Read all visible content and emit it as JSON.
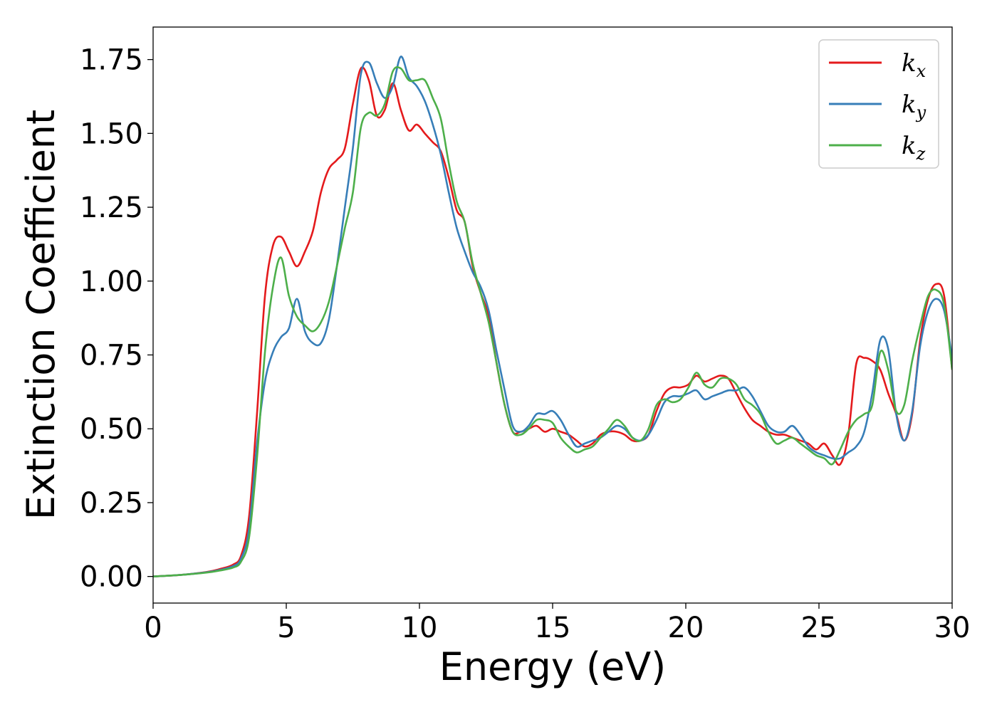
{
  "chart_data": {
    "type": "line",
    "xlabel": "Energy (eV)",
    "ylabel": "Extinction Coefficient",
    "xlim": [
      0,
      30
    ],
    "ylim": [
      -0.09,
      1.86
    ],
    "xticks": [
      "0",
      "5",
      "10",
      "15",
      "20",
      "25",
      "30"
    ],
    "yticks": [
      "0.00",
      "0.25",
      "0.50",
      "0.75",
      "1.00",
      "1.25",
      "1.50",
      "1.75"
    ],
    "grid": false,
    "legend_position": "top-right",
    "series": [
      {
        "name": "k",
        "subscript": "x",
        "color": "#e41a1c",
        "x": [
          0,
          1,
          2,
          2.5,
          3,
          3.3,
          3.6,
          3.9,
          4.2,
          4.5,
          4.8,
          5.1,
          5.4,
          5.7,
          6.0,
          6.3,
          6.6,
          6.9,
          7.2,
          7.5,
          7.8,
          8.1,
          8.4,
          8.7,
          9.0,
          9.3,
          9.6,
          9.9,
          10.2,
          10.5,
          10.8,
          11.1,
          11.4,
          11.7,
          12.0,
          12.3,
          12.6,
          12.9,
          13.2,
          13.5,
          13.8,
          14.1,
          14.4,
          14.7,
          15.0,
          15.3,
          15.6,
          15.9,
          16.2,
          16.5,
          16.8,
          17.1,
          17.4,
          17.7,
          18.0,
          18.3,
          18.6,
          18.9,
          19.2,
          19.5,
          19.8,
          20.1,
          20.4,
          20.7,
          21.0,
          21.3,
          21.6,
          21.9,
          22.2,
          22.5,
          22.8,
          23.1,
          23.4,
          23.7,
          24.0,
          24.3,
          24.6,
          24.9,
          25.2,
          25.5,
          25.8,
          26.1,
          26.4,
          26.7,
          27.0,
          27.3,
          27.6,
          27.9,
          28.2,
          28.5,
          28.8,
          29.1,
          29.4,
          29.7,
          30.0
        ],
        "y": [
          0,
          0.005,
          0.015,
          0.025,
          0.04,
          0.07,
          0.2,
          0.55,
          0.95,
          1.12,
          1.15,
          1.1,
          1.05,
          1.1,
          1.17,
          1.3,
          1.38,
          1.41,
          1.45,
          1.6,
          1.72,
          1.68,
          1.56,
          1.58,
          1.67,
          1.58,
          1.51,
          1.53,
          1.5,
          1.47,
          1.44,
          1.35,
          1.24,
          1.2,
          1.05,
          0.96,
          0.88,
          0.72,
          0.58,
          0.49,
          0.49,
          0.5,
          0.51,
          0.49,
          0.5,
          0.49,
          0.48,
          0.46,
          0.44,
          0.45,
          0.48,
          0.49,
          0.49,
          0.48,
          0.46,
          0.46,
          0.48,
          0.56,
          0.62,
          0.64,
          0.64,
          0.65,
          0.68,
          0.66,
          0.67,
          0.68,
          0.67,
          0.62,
          0.57,
          0.53,
          0.51,
          0.49,
          0.48,
          0.48,
          0.47,
          0.46,
          0.45,
          0.43,
          0.45,
          0.41,
          0.38,
          0.48,
          0.72,
          0.74,
          0.73,
          0.7,
          0.62,
          0.55,
          0.46,
          0.55,
          0.8,
          0.94,
          0.99,
          0.95,
          0.7
        ]
      },
      {
        "name": "k",
        "subscript": "y",
        "color": "#377eb8",
        "x": [
          0,
          1,
          2,
          2.5,
          3,
          3.3,
          3.6,
          3.9,
          4.2,
          4.5,
          4.8,
          5.1,
          5.4,
          5.7,
          6.0,
          6.3,
          6.6,
          6.9,
          7.2,
          7.5,
          7.8,
          8.1,
          8.4,
          8.7,
          9.0,
          9.3,
          9.6,
          9.9,
          10.2,
          10.5,
          10.8,
          11.1,
          11.4,
          11.7,
          12.0,
          12.3,
          12.6,
          12.9,
          13.2,
          13.5,
          13.8,
          14.1,
          14.4,
          14.7,
          15.0,
          15.3,
          15.6,
          15.9,
          16.2,
          16.5,
          16.8,
          17.1,
          17.4,
          17.7,
          18.0,
          18.3,
          18.6,
          18.9,
          19.2,
          19.5,
          19.8,
          20.1,
          20.4,
          20.7,
          21.0,
          21.3,
          21.6,
          21.9,
          22.2,
          22.5,
          22.8,
          23.1,
          23.4,
          23.7,
          24.0,
          24.3,
          24.6,
          24.9,
          25.2,
          25.5,
          25.8,
          26.1,
          26.4,
          26.7,
          27.0,
          27.3,
          27.6,
          27.9,
          28.2,
          28.5,
          28.8,
          29.1,
          29.4,
          29.7,
          30.0
        ],
        "y": [
          0,
          0.005,
          0.014,
          0.022,
          0.035,
          0.06,
          0.16,
          0.45,
          0.66,
          0.76,
          0.81,
          0.84,
          0.94,
          0.83,
          0.79,
          0.79,
          0.87,
          1.05,
          1.25,
          1.45,
          1.7,
          1.74,
          1.67,
          1.62,
          1.66,
          1.76,
          1.69,
          1.66,
          1.61,
          1.53,
          1.43,
          1.3,
          1.18,
          1.1,
          1.03,
          0.98,
          0.9,
          0.76,
          0.63,
          0.51,
          0.49,
          0.51,
          0.55,
          0.55,
          0.56,
          0.53,
          0.48,
          0.44,
          0.45,
          0.46,
          0.47,
          0.49,
          0.51,
          0.5,
          0.47,
          0.46,
          0.48,
          0.53,
          0.59,
          0.61,
          0.61,
          0.62,
          0.63,
          0.6,
          0.61,
          0.62,
          0.63,
          0.63,
          0.64,
          0.61,
          0.56,
          0.51,
          0.49,
          0.49,
          0.51,
          0.48,
          0.44,
          0.42,
          0.41,
          0.4,
          0.4,
          0.42,
          0.44,
          0.49,
          0.62,
          0.8,
          0.77,
          0.55,
          0.46,
          0.56,
          0.78,
          0.9,
          0.94,
          0.9,
          0.74
        ]
      },
      {
        "name": "k",
        "subscript": "z",
        "color": "#4daf4a",
        "x": [
          0,
          1,
          2,
          2.5,
          3,
          3.3,
          3.6,
          3.9,
          4.2,
          4.5,
          4.8,
          5.1,
          5.4,
          5.7,
          6.0,
          6.3,
          6.6,
          6.9,
          7.2,
          7.5,
          7.8,
          8.1,
          8.4,
          8.7,
          9.0,
          9.3,
          9.6,
          9.9,
          10.2,
          10.5,
          10.8,
          11.1,
          11.4,
          11.7,
          12.0,
          12.3,
          12.6,
          12.9,
          13.2,
          13.5,
          13.8,
          14.1,
          14.4,
          14.7,
          15.0,
          15.3,
          15.6,
          15.9,
          16.2,
          16.5,
          16.8,
          17.1,
          17.4,
          17.7,
          18.0,
          18.3,
          18.6,
          18.9,
          19.2,
          19.5,
          19.8,
          20.1,
          20.4,
          20.7,
          21.0,
          21.3,
          21.6,
          21.9,
          22.2,
          22.5,
          22.8,
          23.1,
          23.4,
          23.7,
          24.0,
          24.3,
          24.6,
          24.9,
          25.2,
          25.5,
          25.8,
          26.1,
          26.4,
          26.7,
          27.0,
          27.3,
          27.6,
          27.9,
          28.2,
          28.5,
          28.8,
          29.1,
          29.4,
          29.7,
          30.0
        ],
        "y": [
          0,
          0.005,
          0.013,
          0.02,
          0.03,
          0.05,
          0.13,
          0.4,
          0.76,
          0.98,
          1.08,
          0.95,
          0.88,
          0.85,
          0.83,
          0.86,
          0.93,
          1.05,
          1.18,
          1.3,
          1.52,
          1.57,
          1.56,
          1.6,
          1.71,
          1.72,
          1.68,
          1.68,
          1.68,
          1.62,
          1.55,
          1.4,
          1.27,
          1.2,
          1.06,
          0.96,
          0.86,
          0.72,
          0.58,
          0.49,
          0.48,
          0.5,
          0.53,
          0.53,
          0.52,
          0.47,
          0.44,
          0.42,
          0.43,
          0.44,
          0.47,
          0.5,
          0.53,
          0.51,
          0.47,
          0.46,
          0.5,
          0.58,
          0.6,
          0.59,
          0.6,
          0.64,
          0.69,
          0.65,
          0.64,
          0.67,
          0.67,
          0.65,
          0.6,
          0.58,
          0.55,
          0.49,
          0.45,
          0.46,
          0.47,
          0.45,
          0.43,
          0.41,
          0.4,
          0.38,
          0.43,
          0.49,
          0.53,
          0.55,
          0.58,
          0.76,
          0.7,
          0.56,
          0.58,
          0.73,
          0.85,
          0.95,
          0.97,
          0.92,
          0.7
        ]
      }
    ]
  }
}
